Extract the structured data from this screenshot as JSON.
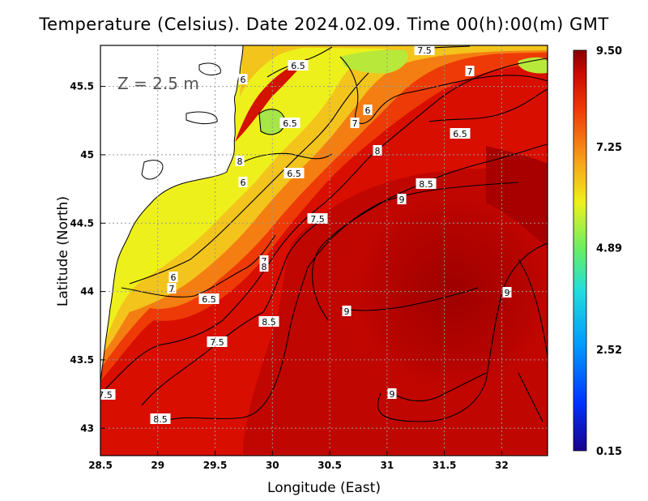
{
  "title": "Temperature (Celsius). Date 2024.02.09. Time 00(h):00(m) GMT",
  "depth_label": "Z = 2.5 m",
  "axes": {
    "xlabel": "Longitude (East)",
    "ylabel": "Latitude (North)",
    "x_ticks": [
      "28.5",
      "29",
      "29.5",
      "30",
      "30.5",
      "31",
      "31.5",
      "32"
    ],
    "y_ticks": [
      "45.5",
      "45",
      "44.5",
      "44",
      "43.5",
      "43"
    ],
    "xlim": [
      28.5,
      32.4
    ],
    "ylim": [
      42.8,
      45.8
    ],
    "grid": true
  },
  "colorbar": {
    "ticks": [
      "9.50",
      "7.25",
      "4.89",
      "2.52",
      "0.15"
    ],
    "min": 0.15,
    "max": 9.5
  },
  "contour_labels": [
    "7.5",
    "6.5",
    "7",
    "6",
    "6.5",
    "7",
    "6",
    "8",
    "6.5",
    "8",
    "6.5",
    "6",
    "8.5",
    "9",
    "7.5",
    "7",
    "8",
    "6",
    "7",
    "6.5",
    "8.5",
    "9",
    "9",
    "7.5",
    "7.5",
    "8.5",
    "9"
  ],
  "colors": {
    "land": "#ffffff",
    "deep_red": "#a00000",
    "red": "#e31b00",
    "orange": "#f58a10",
    "yellow": "#eef21c",
    "light_green": "#a6e646"
  }
}
